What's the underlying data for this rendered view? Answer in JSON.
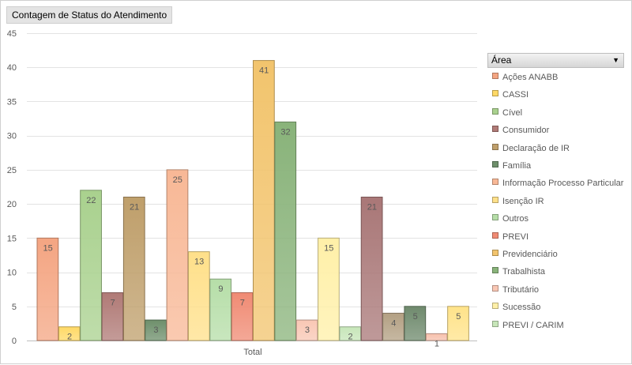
{
  "title": "Contagem de Status do Atendimento",
  "legend": {
    "header": "Área",
    "dropdown_icon": "dropdown-arrow-icon"
  },
  "chart_data": {
    "type": "bar",
    "categories": [
      "Total"
    ],
    "ylim": [
      0,
      45
    ],
    "y_ticks": [
      0,
      5,
      10,
      15,
      20,
      25,
      30,
      35,
      40,
      45
    ],
    "grid": true,
    "legend_position": "right",
    "series": [
      {
        "name": "Ações ANABB",
        "values": [
          15
        ],
        "color": "#f4a582"
      },
      {
        "name": "CASSI",
        "values": [
          2
        ],
        "color": "#ffd966"
      },
      {
        "name": "Cível",
        "values": [
          22
        ],
        "color": "#a9d18e"
      },
      {
        "name": "Consumidor",
        "values": [
          7
        ],
        "color": "#b07a76"
      },
      {
        "name": "Declaração de IR",
        "values": [
          21
        ],
        "color": "#bf9f6b"
      },
      {
        "name": "Família",
        "values": [
          3
        ],
        "color": "#6e8f6b"
      },
      {
        "name": "Informação Processo Particular",
        "values": [
          25
        ],
        "color": "#f8b896"
      },
      {
        "name": "Isenção IR",
        "values": [
          13
        ],
        "color": "#ffe08a"
      },
      {
        "name": "Outros",
        "values": [
          9
        ],
        "color": "#b6dea8"
      },
      {
        "name": "PREVI",
        "values": [
          7
        ],
        "color": "#f08b74"
      },
      {
        "name": "Previdenciário",
        "values": [
          41
        ],
        "color": "#f2c46d"
      },
      {
        "name": "Trabalhista",
        "values": [
          32
        ],
        "color": "#89b37a"
      },
      {
        "name": "Tributário",
        "values": [
          3
        ],
        "color": "#f9c7b4"
      },
      {
        "name": "Sucessão",
        "values": [
          15
        ],
        "color": "#fff0a8"
      },
      {
        "name": "PREVI / CARIM",
        "values": [
          2
        ],
        "color": "#c7e6b9"
      },
      {
        "name": "",
        "values": [
          21
        ],
        "color": "#a97777"
      },
      {
        "name": "",
        "values": [
          4
        ],
        "color": "#b3a083"
      },
      {
        "name": "",
        "values": [
          5
        ],
        "color": "#6f8a6d"
      },
      {
        "name": "",
        "values": [
          1
        ],
        "color": "#f7c1ad"
      },
      {
        "name": "",
        "values": [
          5
        ],
        "color": "#ffe38a"
      }
    ]
  }
}
